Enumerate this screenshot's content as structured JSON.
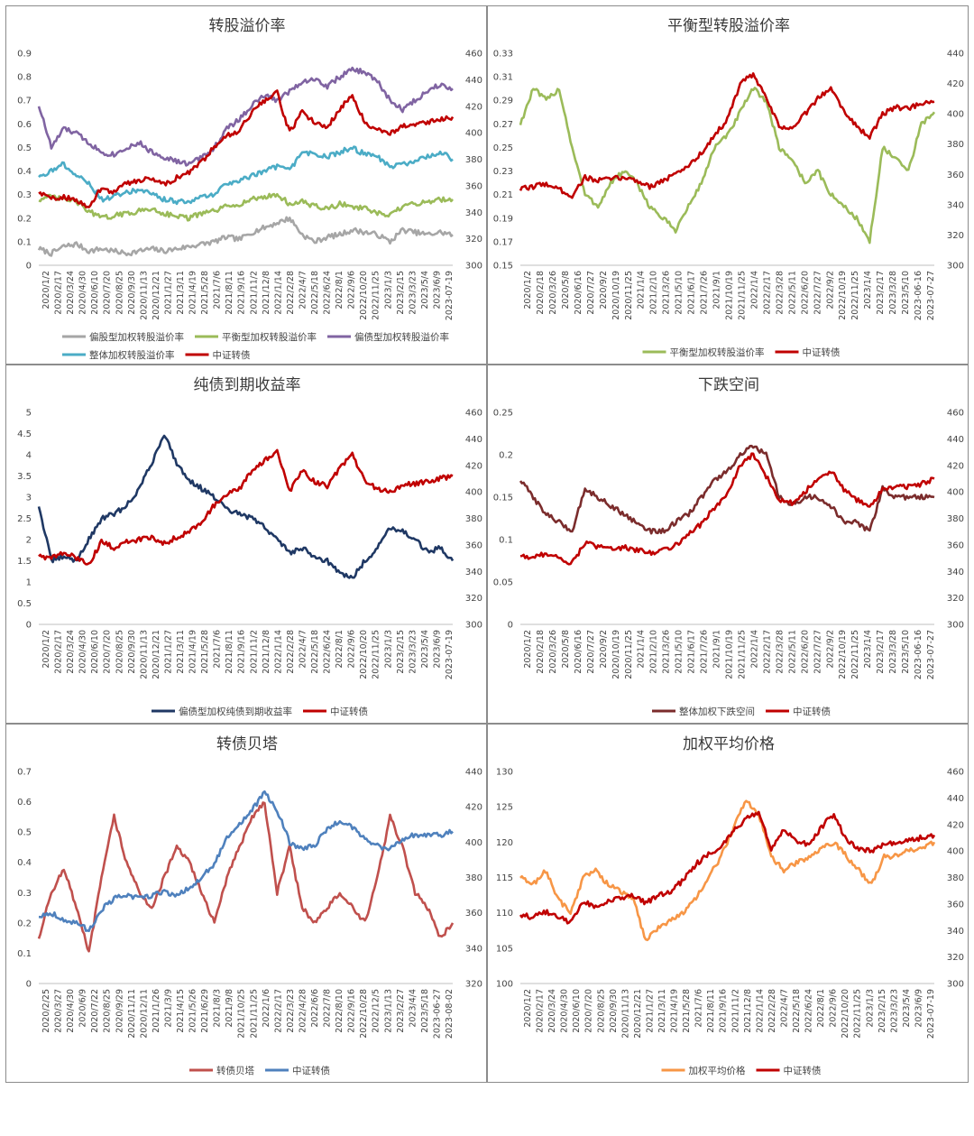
{
  "chart_data": [
    {
      "type": "line",
      "title": "转股溢价率",
      "left_axis": {
        "min": 0,
        "max": 0.9,
        "step": 0.1,
        "ticks": [
          "0",
          "0.1",
          "0.2",
          "0.3",
          "0.4",
          "0.5",
          "0.6",
          "0.7",
          "0.8",
          "0.9"
        ]
      },
      "right_axis": {
        "min": 300,
        "max": 460,
        "step": 20,
        "ticks": [
          "300",
          "320",
          "340",
          "360",
          "380",
          "400",
          "420",
          "440",
          "460"
        ]
      },
      "x_labels": [
        "2020/1/2",
        "2020/2/17",
        "2020/3/24",
        "2020/4/30",
        "2020/6/10",
        "2020/7/20",
        "2020/8/25",
        "2020/9/30",
        "2020/11/13",
        "2020/12/21",
        "2021/1/27",
        "2021/3/11",
        "2021/4/19",
        "2021/5/28",
        "2021/7/6",
        "2021/8/11",
        "2021/9/16",
        "2021/11/2",
        "2021/12/8",
        "2022/1/14",
        "2022/2/28",
        "2022/4/7",
        "2022/5/18",
        "2022/6/24",
        "2022/8/1",
        "2022/9/6",
        "2022/10/20",
        "2022/11/25",
        "2023/1/3",
        "2023/2/15",
        "2023/3/23",
        "2023/5/4",
        "2023/6/9",
        "2023-07-19"
      ],
      "series": [
        {
          "name": "偏股型加权转股溢价率",
          "axis": "left",
          "color": "#a6a6a6",
          "values": [
            0.07,
            0.05,
            0.08,
            0.09,
            0.06,
            0.07,
            0.06,
            0.05,
            0.06,
            0.07,
            0.06,
            0.07,
            0.08,
            0.09,
            0.1,
            0.12,
            0.11,
            0.14,
            0.16,
            0.18,
            0.2,
            0.13,
            0.1,
            0.12,
            0.13,
            0.15,
            0.14,
            0.13,
            0.1,
            0.15,
            0.14,
            0.13,
            0.14,
            0.13
          ]
        },
        {
          "name": "平衡型加权转股溢价率",
          "axis": "left",
          "color": "#9bbb59",
          "values": [
            0.28,
            0.29,
            0.28,
            0.27,
            0.23,
            0.2,
            0.21,
            0.22,
            0.23,
            0.24,
            0.22,
            0.21,
            0.2,
            0.22,
            0.23,
            0.25,
            0.26,
            0.28,
            0.29,
            0.3,
            0.26,
            0.27,
            0.25,
            0.24,
            0.26,
            0.25,
            0.24,
            0.22,
            0.21,
            0.25,
            0.26,
            0.27,
            0.28,
            0.28
          ]
        },
        {
          "name": "偏债型加权转股溢价率",
          "axis": "left",
          "color": "#8064a2",
          "values": [
            0.68,
            0.5,
            0.58,
            0.56,
            0.52,
            0.48,
            0.47,
            0.5,
            0.52,
            0.48,
            0.46,
            0.44,
            0.43,
            0.46,
            0.5,
            0.58,
            0.62,
            0.68,
            0.72,
            0.7,
            0.74,
            0.78,
            0.79,
            0.76,
            0.8,
            0.83,
            0.82,
            0.78,
            0.7,
            0.66,
            0.7,
            0.74,
            0.77,
            0.75
          ]
        },
        {
          "name": "整体加权转股溢价率",
          "axis": "left",
          "color": "#4bacc6",
          "values": [
            0.38,
            0.4,
            0.43,
            0.38,
            0.35,
            0.28,
            0.29,
            0.31,
            0.32,
            0.3,
            0.28,
            0.27,
            0.27,
            0.29,
            0.3,
            0.35,
            0.36,
            0.38,
            0.4,
            0.42,
            0.4,
            0.48,
            0.47,
            0.46,
            0.48,
            0.5,
            0.47,
            0.46,
            0.42,
            0.43,
            0.44,
            0.46,
            0.48,
            0.45
          ]
        },
        {
          "name": "中证转债",
          "axis": "right",
          "color": "#c00000",
          "values": [
            355,
            350,
            352,
            348,
            345,
            358,
            355,
            362,
            364,
            366,
            361,
            366,
            370,
            378,
            390,
            398,
            402,
            416,
            424,
            430,
            400,
            416,
            408,
            404,
            418,
            428,
            408,
            402,
            400,
            405,
            406,
            408,
            410,
            412
          ]
        }
      ]
    },
    {
      "type": "line",
      "title": "平衡型转股溢价率",
      "left_axis": {
        "min": 0.15,
        "max": 0.33,
        "step": 0.02,
        "ticks": [
          "0.15",
          "0.17",
          "0.19",
          "0.21",
          "0.23",
          "0.25",
          "0.27",
          "0.29",
          "0.31",
          "0.33"
        ]
      },
      "right_axis": {
        "min": 300,
        "max": 440,
        "step": 20,
        "ticks": [
          "300",
          "320",
          "340",
          "360",
          "380",
          "400",
          "420",
          "440"
        ]
      },
      "x_labels": [
        "2020/1/2",
        "2020/2/18",
        "2020/3/26",
        "2020/5/8",
        "2020/6/16",
        "2020/7/27",
        "2020/9/2",
        "2020/10/19",
        "2020/11/25",
        "2021/1/4",
        "2021/2/10",
        "2021/3/26",
        "2021/5/10",
        "2021/6/17",
        "2021/7/26",
        "2021/9/1",
        "2021/10/19",
        "2021/11/25",
        "2022/1/4",
        "2022/2/17",
        "2022/3/28",
        "2022/5/11",
        "2022/6/20",
        "2022/7/27",
        "2022/9/2",
        "2022/10/19",
        "2022/11/25",
        "2023/1/4",
        "2023/2/17",
        "2023/3/28",
        "2023/5/10",
        "2023-06-16",
        "2023-07-27"
      ],
      "series": [
        {
          "name": "平衡型加权转股溢价率",
          "axis": "left",
          "color": "#9bbb59",
          "values": [
            0.27,
            0.3,
            0.29,
            0.3,
            0.25,
            0.21,
            0.2,
            0.22,
            0.23,
            0.22,
            0.2,
            0.19,
            0.18,
            0.2,
            0.22,
            0.25,
            0.26,
            0.28,
            0.3,
            0.29,
            0.25,
            0.24,
            0.22,
            0.23,
            0.21,
            0.2,
            0.19,
            0.17,
            0.25,
            0.24,
            0.23,
            0.27,
            0.28
          ]
        },
        {
          "name": "中证转债",
          "axis": "right",
          "color": "#c00000",
          "values": [
            350,
            352,
            354,
            350,
            346,
            358,
            356,
            357,
            358,
            356,
            352,
            356,
            360,
            366,
            374,
            386,
            396,
            420,
            426,
            410,
            392,
            390,
            400,
            410,
            418,
            402,
            392,
            384,
            400,
            404,
            404,
            406,
            408
          ]
        }
      ]
    },
    {
      "type": "line",
      "title": "纯债到期收益率",
      "left_axis": {
        "min": 0,
        "max": 5,
        "step": 0.5,
        "ticks": [
          "0",
          "0.5",
          "1",
          "1.5",
          "2",
          "2.5",
          "3",
          "3.5",
          "4",
          "4.5",
          "5"
        ]
      },
      "right_axis": {
        "min": 300,
        "max": 460,
        "step": 20,
        "ticks": [
          "300",
          "320",
          "340",
          "360",
          "380",
          "400",
          "420",
          "440",
          "460"
        ]
      },
      "x_labels": [
        "2020/1/2",
        "2020/2/17",
        "2020/3/24",
        "2020/4/30",
        "2020/6/10",
        "2020/7/20",
        "2020/8/25",
        "2020/9/30",
        "2020/11/13",
        "2020/12/21",
        "2021/1/27",
        "2021/3/11",
        "2021/4/19",
        "2021/5/28",
        "2021/7/6",
        "2021/8/11",
        "2021/9/16",
        "2021/11/2",
        "2021/12/8",
        "2022/1/14",
        "2022/2/28",
        "2022/4/7",
        "2022/5/18",
        "2022/6/24",
        "2022/8/1",
        "2022/9/6",
        "2022/10/20",
        "2022/11/25",
        "2023/1/3",
        "2023/2/15",
        "2023/3/23",
        "2023/5/4",
        "2023/6/9",
        "2023-07-19"
      ],
      "series": [
        {
          "name": "偏债型加权纯债到期收益率",
          "axis": "left",
          "color": "#1f3864",
          "values": [
            2.8,
            1.5,
            1.6,
            1.5,
            2.0,
            2.5,
            2.6,
            2.8,
            3.2,
            3.8,
            4.5,
            3.8,
            3.4,
            3.2,
            3.0,
            2.7,
            2.6,
            2.5,
            2.3,
            2.0,
            1.7,
            1.8,
            1.6,
            1.5,
            1.2,
            1.1,
            1.5,
            1.8,
            2.3,
            2.2,
            2.0,
            1.7,
            1.8,
            1.5
          ]
        },
        {
          "name": "中证转债",
          "axis": "right",
          "color": "#c00000",
          "values": [
            352,
            350,
            354,
            350,
            346,
            362,
            358,
            362,
            364,
            366,
            361,
            366,
            370,
            378,
            390,
            398,
            402,
            416,
            424,
            430,
            400,
            416,
            408,
            404,
            418,
            428,
            408,
            402,
            400,
            405,
            406,
            408,
            410,
            412
          ]
        }
      ]
    },
    {
      "type": "line",
      "title": "下跌空间",
      "left_axis": {
        "min": 0,
        "max": 0.25,
        "step": 0.05,
        "ticks": [
          "0",
          "0.05",
          "0.1",
          "0.15",
          "0.2",
          "0.25"
        ]
      },
      "right_axis": {
        "min": 300,
        "max": 460,
        "step": 20,
        "ticks": [
          "300",
          "320",
          "340",
          "360",
          "380",
          "400",
          "420",
          "440",
          "460"
        ]
      },
      "x_labels": [
        "2020/1/2",
        "2020/2/18",
        "2020/3/26",
        "2020/5/8",
        "2020/6/16",
        "2020/7/27",
        "2020/9/2",
        "2020/10/19",
        "2020/11/25",
        "2021/1/4",
        "2021/2/10",
        "2021/3/26",
        "2021/5/10",
        "2021/6/17",
        "2021/7/26",
        "2021/9/1",
        "2021/10/19",
        "2021/11/25",
        "2022/1/4",
        "2022/2/17",
        "2022/3/28",
        "2022/5/11",
        "2022/6/20",
        "2022/7/27",
        "2022/9/2",
        "2022/10/19",
        "2022/11/25",
        "2023/1/4",
        "2023/2/17",
        "2023/3/28",
        "2023/5/10",
        "2023-06-16",
        "2023-07-27"
      ],
      "series": [
        {
          "name": "整体加权下跌空间",
          "axis": "left",
          "color": "#7b2c2c",
          "values": [
            0.17,
            0.15,
            0.13,
            0.12,
            0.11,
            0.16,
            0.15,
            0.14,
            0.13,
            0.12,
            0.11,
            0.11,
            0.12,
            0.13,
            0.15,
            0.17,
            0.18,
            0.2,
            0.21,
            0.2,
            0.15,
            0.14,
            0.15,
            0.15,
            0.14,
            0.12,
            0.12,
            0.11,
            0.16,
            0.15,
            0.15,
            0.15,
            0.15
          ]
        },
        {
          "name": "中证转债",
          "axis": "right",
          "color": "#c00000",
          "values": [
            352,
            350,
            354,
            350,
            346,
            362,
            358,
            358,
            358,
            356,
            354,
            356,
            360,
            368,
            376,
            388,
            398,
            420,
            428,
            412,
            394,
            392,
            400,
            410,
            416,
            402,
            394,
            388,
            402,
            404,
            404,
            406,
            410
          ]
        }
      ]
    },
    {
      "type": "line",
      "title": "转债贝塔",
      "left_axis": {
        "min": 0,
        "max": 0.7,
        "step": 0.1,
        "ticks": [
          "0",
          "0.1",
          "0.2",
          "0.3",
          "0.4",
          "0.5",
          "0.6",
          "0.7"
        ]
      },
      "right_axis": {
        "min": 320,
        "max": 440,
        "step": 20,
        "ticks": [
          "320",
          "340",
          "360",
          "380",
          "400",
          "420",
          "440"
        ]
      },
      "x_labels": [
        "2020/2/25",
        "2020/3/27",
        "2020/4/30",
        "2020/6/9",
        "2020/7/22",
        "2020/8/25",
        "2020/9/29",
        "2020/11/11",
        "2020/12/11",
        "2021/1/26",
        "2021/3/9",
        "2021/4/15",
        "2021/5/26",
        "2021/6/29",
        "2021/8/3",
        "2021/9/8",
        "2021/10/25",
        "2021/11/25",
        "2022/1/6",
        "2022/2/17",
        "2022/3/23",
        "2022/4/28",
        "2022/6/6",
        "2022/7/8",
        "2022/8/10",
        "2022/9/16",
        "2022/10/28",
        "2022/12/5",
        "2023/1/13",
        "2023/2/27",
        "2023/4/4",
        "2023/5/18",
        "2023-06-27",
        "2023-08-02"
      ],
      "series": [
        {
          "name": "转债贝塔",
          "axis": "left",
          "color": "#c0504d",
          "values": [
            0.15,
            0.3,
            0.38,
            0.25,
            0.1,
            0.35,
            0.55,
            0.4,
            0.3,
            0.25,
            0.35,
            0.45,
            0.4,
            0.3,
            0.2,
            0.35,
            0.45,
            0.55,
            0.6,
            0.3,
            0.45,
            0.25,
            0.2,
            0.25,
            0.3,
            0.25,
            0.2,
            0.35,
            0.55,
            0.45,
            0.3,
            0.25,
            0.15,
            0.2
          ]
        },
        {
          "name": "中证转债",
          "axis": "right",
          "color": "#4f81bd",
          "values": [
            358,
            360,
            356,
            354,
            350,
            362,
            368,
            370,
            368,
            370,
            372,
            370,
            374,
            380,
            388,
            402,
            410,
            418,
            428,
            418,
            400,
            396,
            398,
            408,
            412,
            408,
            402,
            398,
            396,
            402,
            404,
            404,
            404,
            406
          ]
        }
      ]
    },
    {
      "type": "line",
      "title": "加权平均价格",
      "left_axis": {
        "min": 100,
        "max": 130,
        "step": 5,
        "ticks": [
          "100",
          "105",
          "110",
          "115",
          "120",
          "125",
          "130"
        ]
      },
      "right_axis": {
        "min": 300,
        "max": 460,
        "step": 20,
        "ticks": [
          "300",
          "320",
          "340",
          "360",
          "380",
          "400",
          "420",
          "440",
          "460"
        ]
      },
      "x_labels": [
        "2020/1/2",
        "2020/2/17",
        "2020/3/24",
        "2020/4/30",
        "2020/6/10",
        "2020/7/20",
        "2020/8/25",
        "2020/9/30",
        "2020/11/13",
        "2020/12/21",
        "2021/1/27",
        "2021/3/11",
        "2021/4/19",
        "2021/5/28",
        "2021/7/6",
        "2021/8/11",
        "2021/9/16",
        "2021/11/2",
        "2021/12/8",
        "2022/1/14",
        "2022/2/28",
        "2022/4/7",
        "2022/5/18",
        "2022/6/24",
        "2022/8/1",
        "2022/9/6",
        "2022/10/20",
        "2022/11/25",
        "2023/1/3",
        "2023/2/15",
        "2023/3/23",
        "2023/5/4",
        "2023/6/9",
        "2023-07-19"
      ],
      "series": [
        {
          "name": "加权平均价格",
          "axis": "left",
          "color": "#f79646",
          "values": [
            115,
            114,
            116,
            112,
            110,
            115,
            116,
            114,
            113,
            112,
            106,
            108,
            109,
            110,
            112,
            115,
            118,
            122,
            126,
            124,
            118,
            116,
            117,
            118,
            119,
            120,
            118,
            116,
            114,
            118,
            118,
            119,
            119,
            120
          ]
        },
        {
          "name": "中证转债",
          "axis": "right",
          "color": "#c00000",
          "values": [
            352,
            350,
            354,
            350,
            346,
            362,
            358,
            362,
            364,
            366,
            361,
            366,
            370,
            378,
            390,
            398,
            402,
            416,
            424,
            430,
            400,
            416,
            408,
            404,
            418,
            428,
            408,
            402,
            400,
            405,
            406,
            408,
            410,
            412
          ]
        }
      ]
    }
  ]
}
